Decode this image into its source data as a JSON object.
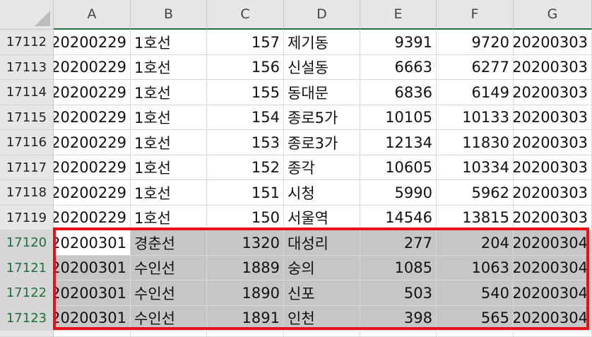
{
  "columns": [
    "A",
    "B",
    "C",
    "D",
    "E",
    "F",
    "G"
  ],
  "rows": [
    {
      "num": "17112",
      "cells": [
        "20200229",
        "1호선",
        "157",
        "제기동",
        "9391",
        "9720",
        "20200303"
      ]
    },
    {
      "num": "17113",
      "cells": [
        "20200229",
        "1호선",
        "156",
        "신설동",
        "6663",
        "6277",
        "20200303"
      ]
    },
    {
      "num": "17114",
      "cells": [
        "20200229",
        "1호선",
        "155",
        "동대문",
        "6836",
        "6149",
        "20200303"
      ]
    },
    {
      "num": "17115",
      "cells": [
        "20200229",
        "1호선",
        "154",
        "종로5가",
        "10105",
        "10133",
        "20200303"
      ]
    },
    {
      "num": "17116",
      "cells": [
        "20200229",
        "1호선",
        "153",
        "종로3가",
        "12134",
        "11830",
        "20200303"
      ]
    },
    {
      "num": "17117",
      "cells": [
        "20200229",
        "1호선",
        "152",
        "종각",
        "10605",
        "10334",
        "20200303"
      ]
    },
    {
      "num": "17118",
      "cells": [
        "20200229",
        "1호선",
        "151",
        "시청",
        "5990",
        "5962",
        "20200303"
      ]
    },
    {
      "num": "17119",
      "cells": [
        "20200229",
        "1호선",
        "150",
        "서울역",
        "14546",
        "13815",
        "20200303"
      ]
    },
    {
      "num": "17120",
      "cells": [
        "20200301",
        "경춘선",
        "1320",
        "대성리",
        "277",
        "204",
        "20200304"
      ]
    },
    {
      "num": "17121",
      "cells": [
        "20200301",
        "수인선",
        "1889",
        "숭의",
        "1085",
        "1063",
        "20200304"
      ]
    },
    {
      "num": "17122",
      "cells": [
        "20200301",
        "수인선",
        "1890",
        "신포",
        "503",
        "540",
        "20200304"
      ]
    },
    {
      "num": "17123",
      "cells": [
        "20200301",
        "수인선",
        "1891",
        "인천",
        "398",
        "565",
        "20200304"
      ]
    }
  ],
  "selection": {
    "first_row": 8,
    "last_row": 11,
    "active_row": 8,
    "active_col": 0
  },
  "colors": {
    "selection_border": "#e8101a",
    "selected_header_text": "#1e6f3b",
    "selected_fill": "#c6c6c6"
  }
}
